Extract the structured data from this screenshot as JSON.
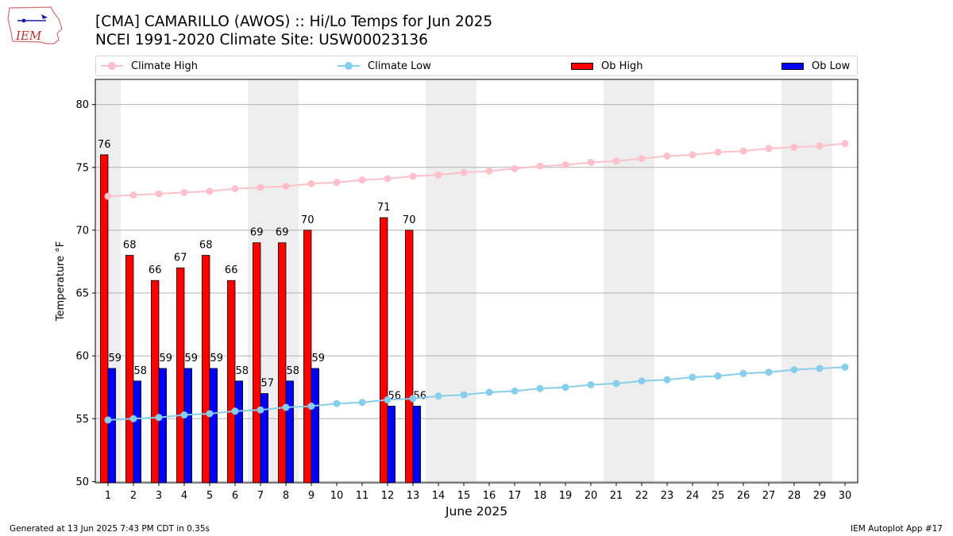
{
  "header": {
    "logo_text": "IEM",
    "title_line1": "[CMA] CAMARILLO (AWOS) :: Hi/Lo Temps for Jun 2025",
    "title_line2": "NCEI 1991-2020 Climate Site: USW00023136"
  },
  "legend": {
    "items": [
      {
        "label": "Climate High",
        "kind": "line",
        "color": "#ffc0cb"
      },
      {
        "label": "Climate Low",
        "kind": "line",
        "color": "#87ceeb"
      },
      {
        "label": "Ob High",
        "kind": "bar",
        "color": "#ff0000"
      },
      {
        "label": "Ob Low",
        "kind": "bar",
        "color": "#0000ff"
      }
    ]
  },
  "footer": {
    "generated": "Generated at 13 Jun 2025 7:43 PM CDT in 0.35s",
    "app": "IEM Autoplot App #17"
  },
  "chart_data": {
    "type": "bar",
    "xlabel": "June 2025",
    "ylabel": "Temperature °F",
    "x": [
      1,
      2,
      3,
      4,
      5,
      6,
      7,
      8,
      9,
      10,
      11,
      12,
      13,
      14,
      15,
      16,
      17,
      18,
      19,
      20,
      21,
      22,
      23,
      24,
      25,
      26,
      27,
      28,
      29,
      30
    ],
    "ylim": [
      49.9,
      82
    ],
    "yticks": [
      50,
      55,
      60,
      65,
      70,
      75,
      80
    ],
    "grid": "horizontal",
    "legend_position": "top",
    "weekend_shading": [
      [
        1,
        1
      ],
      [
        7,
        8
      ],
      [
        14,
        15
      ],
      [
        21,
        22
      ],
      [
        28,
        29
      ]
    ],
    "series": [
      {
        "name": "Ob High",
        "type": "bar",
        "color": "#ff0000",
        "values": [
          76,
          68,
          66,
          67,
          68,
          66,
          69,
          69,
          70,
          null,
          null,
          71,
          70,
          null,
          null,
          null,
          null,
          null,
          null,
          null,
          null,
          null,
          null,
          null,
          null,
          null,
          null,
          null,
          null,
          null
        ]
      },
      {
        "name": "Ob Low",
        "type": "bar",
        "color": "#0000ff",
        "values": [
          59,
          58,
          59,
          59,
          59,
          58,
          57,
          58,
          59,
          null,
          null,
          56,
          56,
          null,
          null,
          null,
          null,
          null,
          null,
          null,
          null,
          null,
          null,
          null,
          null,
          null,
          null,
          null,
          null,
          null
        ]
      },
      {
        "name": "Climate High",
        "type": "line",
        "color": "#ffc0cb",
        "values": [
          72.7,
          72.8,
          72.9,
          73.0,
          73.1,
          73.3,
          73.4,
          73.5,
          73.7,
          73.8,
          74.0,
          74.1,
          74.3,
          74.4,
          74.6,
          74.7,
          74.9,
          75.1,
          75.2,
          75.4,
          75.5,
          75.7,
          75.9,
          76.0,
          76.2,
          76.3,
          76.5,
          76.6,
          76.7,
          76.9
        ]
      },
      {
        "name": "Climate Low",
        "type": "line",
        "color": "#87ceeb",
        "values": [
          54.9,
          55.0,
          55.1,
          55.3,
          55.4,
          55.6,
          55.7,
          55.9,
          56.0,
          56.2,
          56.3,
          56.5,
          56.6,
          56.8,
          56.9,
          57.1,
          57.2,
          57.4,
          57.5,
          57.7,
          57.8,
          58.0,
          58.1,
          58.3,
          58.4,
          58.6,
          58.7,
          58.9,
          59.0,
          59.1
        ]
      }
    ]
  }
}
